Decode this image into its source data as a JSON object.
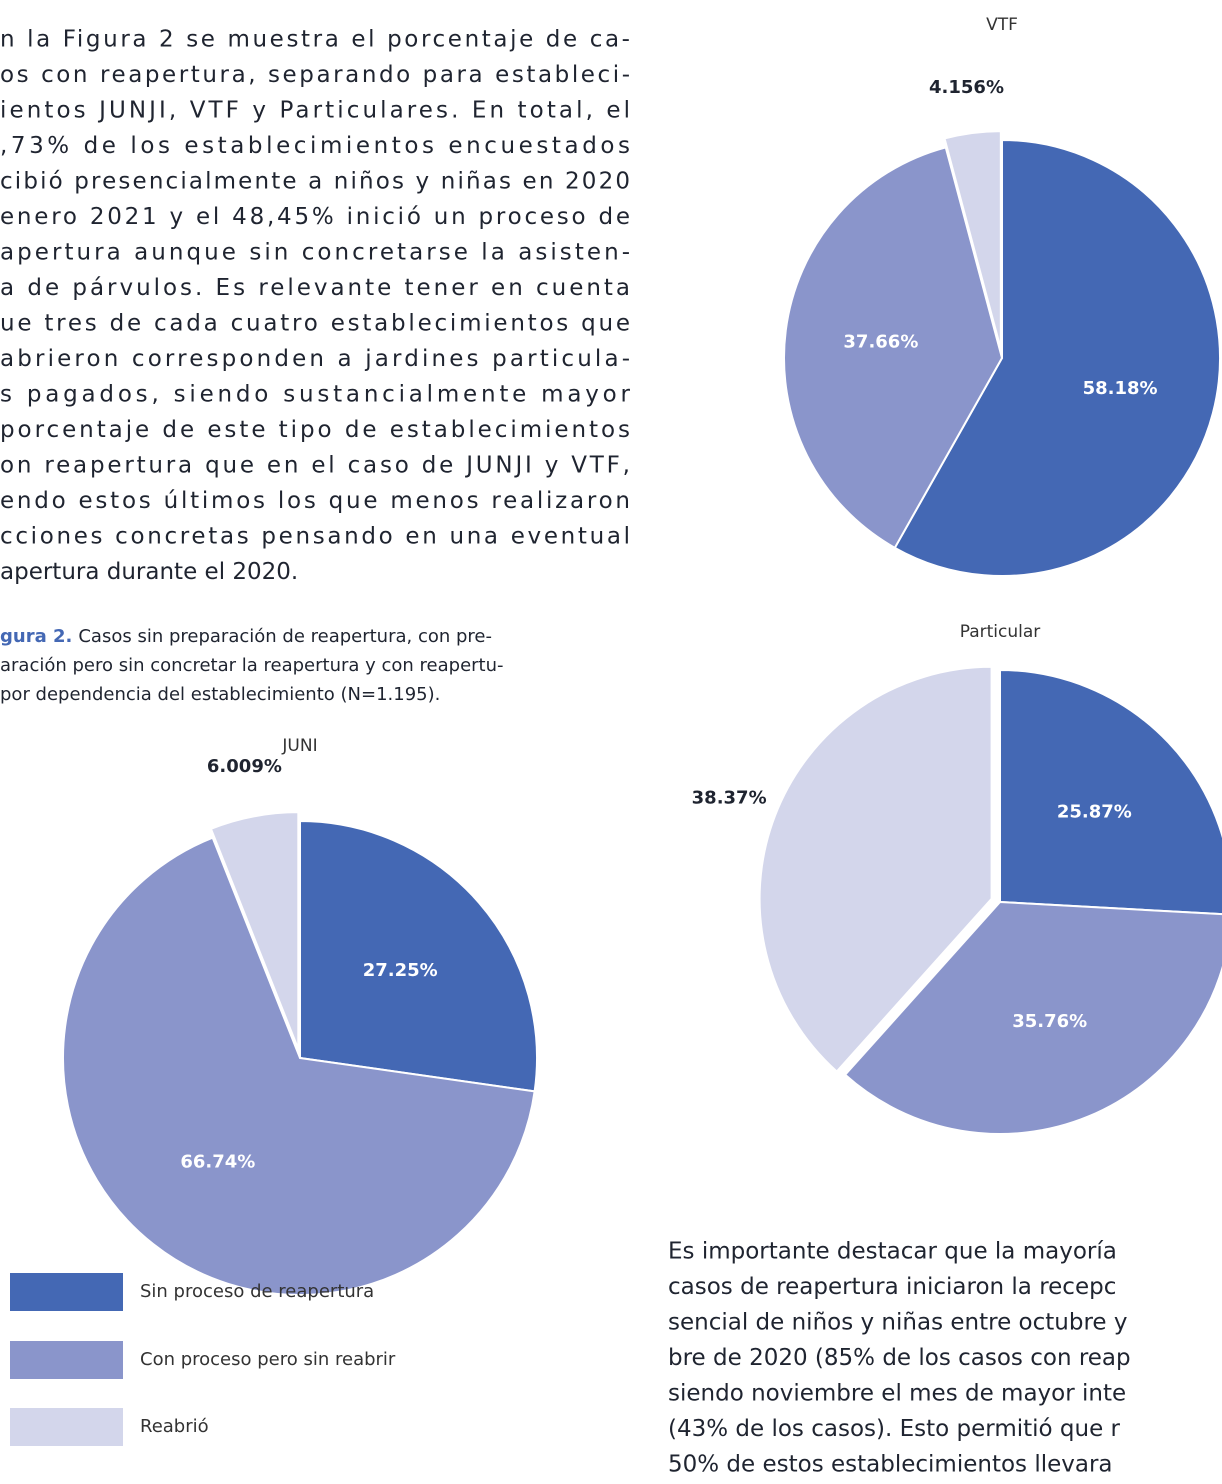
{
  "paragraph": [
    "n la Figura 2 se muestra el porcentaje de ca-",
    "os con reapertura, separando para estableci-",
    "ientos JUNJI, VTF y Particulares. En total, el",
    ",73% de los establecimientos encuestados",
    "cibió presencialmente a niños y niñas en 2020",
    "enero 2021 y el 48,45% inició un proceso de",
    "apertura aunque sin concretarse la asisten-",
    "a de párvulos. Es relevante tener en cuenta",
    "ue tres de cada cuatro establecimientos que",
    "abrieron corresponden a jardines particula-",
    "s pagados, siendo sustancialmente mayor",
    "porcentaje de este tipo de establecimientos",
    "on reapertura que en el caso de JUNJI y VTF,",
    "endo estos últimos los que menos realizaron",
    "cciones concretas pensando en una eventual",
    "apertura durante el 2020."
  ],
  "caption": {
    "label": "gura 2.",
    "lines": [
      "Casos sin preparación de reapertura, con pre-",
      "aración pero sin concretar la reapertura y con reapertu-",
      "por dependencia del establecimiento (N=1.195)."
    ]
  },
  "paragraph2": [
    "Es importante destacar que la mayoría",
    "casos de reapertura iniciaron la recepc",
    "sencial de niños y niñas entre octubre y",
    "bre de 2020 (85% de los casos con reap",
    "siendo noviembre el mes de mayor inte",
    "(43% de los casos). Esto permitió que r",
    "50% de estos establecimientos llevara"
  ],
  "chart_data": [
    {
      "type": "pie",
      "title": "JUNI",
      "categories": [
        "Sin proceso de reapertura",
        "Con proceso pero sin reabrir",
        "Reabrió"
      ],
      "values": [
        27.25,
        66.74,
        6.009
      ],
      "value_labels": [
        "27.25%",
        "66.74%",
        "6.009%"
      ],
      "colors": [
        "#4468b4",
        "#8a95cb",
        "#d3d6eb"
      ]
    },
    {
      "type": "pie",
      "title": "VTF",
      "categories": [
        "Sin proceso de reapertura",
        "Con proceso pero sin reabrir",
        "Reabrió"
      ],
      "values": [
        58.18,
        37.66,
        4.156
      ],
      "value_labels": [
        "58.18%",
        "37.66%",
        "4.156%"
      ],
      "colors": [
        "#4468b4",
        "#8a95cb",
        "#d3d6eb"
      ]
    },
    {
      "type": "pie",
      "title": "Particular",
      "categories": [
        "Sin proceso de reapertura",
        "Con proceso pero sin reabrir",
        "Reabrió"
      ],
      "values": [
        25.87,
        35.76,
        38.37
      ],
      "value_labels": [
        "25.87%",
        "35.76%",
        "38.37%"
      ],
      "colors": [
        "#4468b4",
        "#8a95cb",
        "#d3d6eb"
      ]
    }
  ]
}
